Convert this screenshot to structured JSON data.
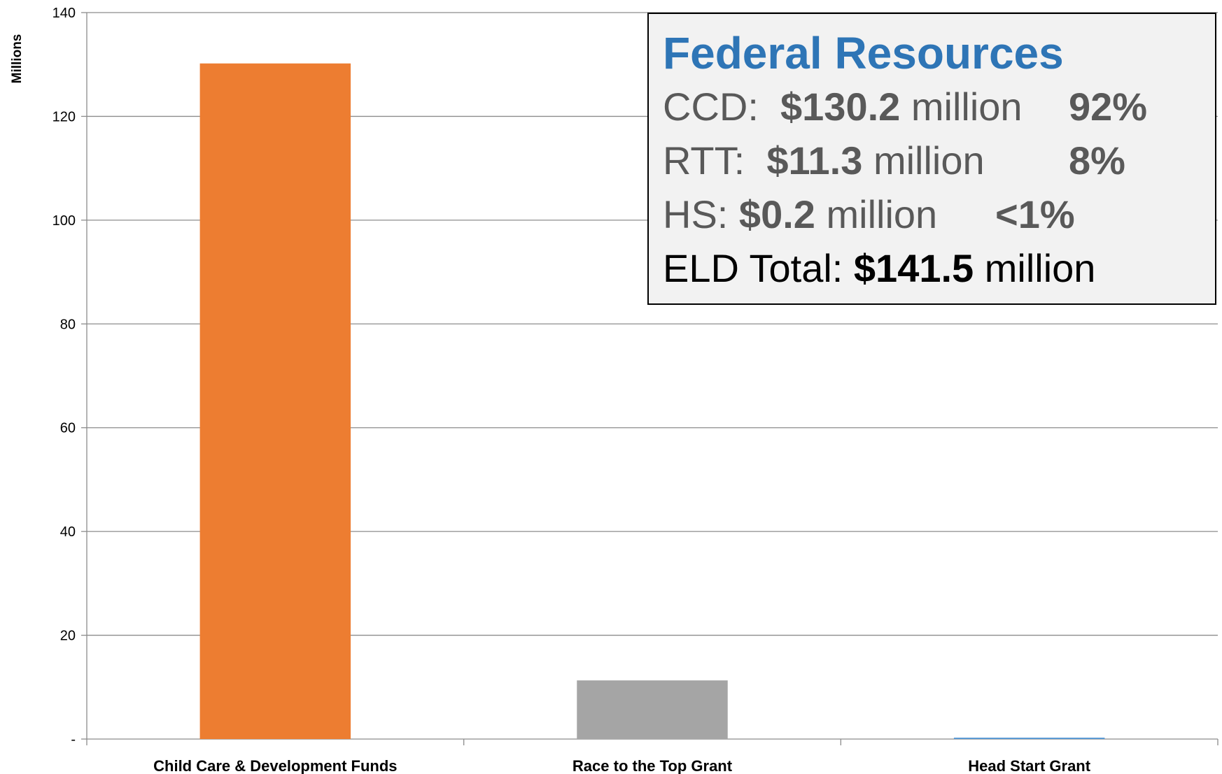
{
  "chart_data": {
    "type": "bar",
    "title": "",
    "xlabel": "",
    "ylabel": "Millions",
    "ylim": [
      0,
      140
    ],
    "yticks": [
      0,
      20,
      40,
      60,
      80,
      100,
      120,
      140
    ],
    "ytick_labels": [
      "-",
      "20",
      "40",
      "60",
      "80",
      "100",
      "120",
      "140"
    ],
    "grid": true,
    "legend": "none",
    "categories": [
      "Child Care & Development Funds",
      "Race to the Top Grant",
      "Head Start Grant"
    ],
    "values": [
      130.2,
      11.3,
      0.2
    ],
    "colors": [
      "#ed7d31",
      "#a5a5a5",
      "#5b9bd5"
    ]
  },
  "info_box": {
    "title": "Federal Resources",
    "lines": [
      {
        "label": "CCD:",
        "amount": "$130.2",
        "unit": "million",
        "percent": "92%"
      },
      {
        "label": "RTT:",
        "amount": "$11.3",
        "unit": "million",
        "percent": "8%"
      },
      {
        "label": "HS:",
        "amount": "$0.2",
        "unit": "million",
        "percent": "<1%"
      }
    ],
    "total_label": "ELD Total:",
    "total_amount": "$141.5",
    "total_unit": "million"
  }
}
